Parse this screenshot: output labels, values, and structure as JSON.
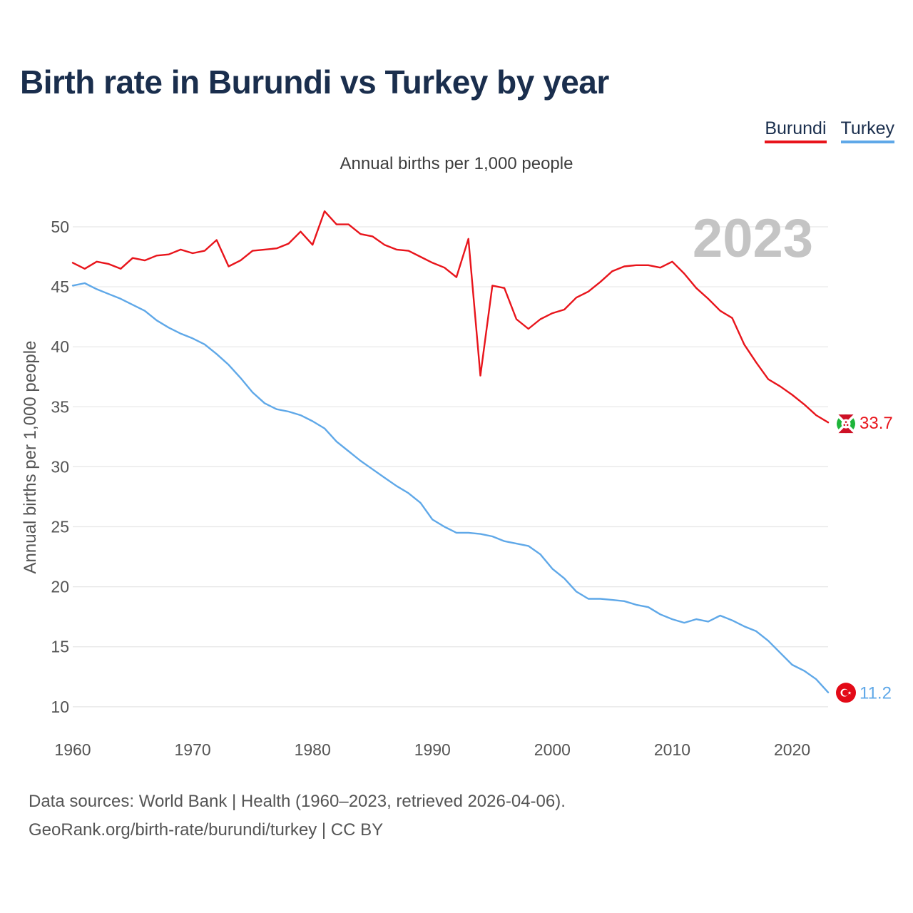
{
  "title": "Birth rate in Burundi vs Turkey by year",
  "subtitle": "Annual births per 1,000 people",
  "legend": [
    {
      "label": "Burundi",
      "color": "#e8141b"
    },
    {
      "label": "Turkey",
      "color": "#5fa8e8"
    }
  ],
  "footer": {
    "line1": "Data sources: World Bank | Health (1960–2023, retrieved 2026-04-06).",
    "line2": "GeoRank.org/birth-rate/burundi/turkey | CC BY"
  },
  "chart_data": {
    "type": "line",
    "title": "Birth rate in Burundi vs Turkey by year",
    "ylabel": "Annual births per 1,000 people",
    "xlabel": "",
    "year_label": "2023",
    "xlim": [
      1960,
      2023
    ],
    "ylim": [
      8,
      53
    ],
    "yticks": [
      10,
      15,
      20,
      25,
      30,
      35,
      40,
      45,
      50
    ],
    "xticks": [
      1960,
      1970,
      1980,
      1990,
      2000,
      2010,
      2020
    ],
    "grid": true,
    "x": [
      1960,
      1961,
      1962,
      1963,
      1964,
      1965,
      1966,
      1967,
      1968,
      1969,
      1970,
      1971,
      1972,
      1973,
      1974,
      1975,
      1976,
      1977,
      1978,
      1979,
      1980,
      1981,
      1982,
      1983,
      1984,
      1985,
      1986,
      1987,
      1988,
      1989,
      1990,
      1991,
      1992,
      1993,
      1994,
      1995,
      1996,
      1997,
      1998,
      1999,
      2000,
      2001,
      2002,
      2003,
      2004,
      2005,
      2006,
      2007,
      2008,
      2009,
      2010,
      2011,
      2012,
      2013,
      2014,
      2015,
      2016,
      2017,
      2018,
      2019,
      2020,
      2021,
      2022,
      2023
    ],
    "series": [
      {
        "name": "Burundi",
        "color": "#e8141b",
        "end_label": "33.7",
        "values": [
          47.0,
          46.5,
          47.1,
          46.9,
          46.5,
          47.4,
          47.2,
          47.6,
          47.7,
          48.1,
          47.8,
          48.0,
          48.9,
          46.7,
          47.2,
          48.0,
          48.1,
          48.2,
          48.6,
          49.6,
          48.5,
          51.3,
          50.2,
          50.2,
          49.4,
          49.2,
          48.5,
          48.1,
          48.0,
          47.5,
          47.0,
          46.6,
          45.8,
          49.0,
          37.6,
          45.1,
          44.9,
          42.3,
          41.5,
          42.3,
          42.8,
          43.1,
          44.1,
          44.6,
          45.4,
          46.3,
          46.7,
          46.8,
          46.8,
          46.6,
          47.1,
          46.1,
          44.9,
          44.0,
          43.0,
          42.4,
          40.2,
          38.7,
          37.3,
          36.7,
          36.0,
          35.2,
          34.3,
          33.7
        ]
      },
      {
        "name": "Turkey",
        "color": "#5fa8e8",
        "end_label": "11.2",
        "values": [
          45.1,
          45.3,
          44.8,
          44.4,
          44.0,
          43.5,
          43.0,
          42.2,
          41.6,
          41.1,
          40.7,
          40.2,
          39.4,
          38.5,
          37.4,
          36.2,
          35.3,
          34.8,
          34.6,
          34.3,
          33.8,
          33.2,
          32.1,
          31.3,
          30.5,
          29.8,
          29.1,
          28.4,
          27.8,
          27.0,
          25.6,
          25.0,
          24.5,
          24.5,
          24.4,
          24.2,
          23.8,
          23.6,
          23.4,
          22.7,
          21.5,
          20.7,
          19.6,
          19.0,
          19.0,
          18.9,
          18.8,
          18.5,
          18.3,
          17.7,
          17.3,
          17.0,
          17.3,
          17.1,
          17.6,
          17.2,
          16.7,
          16.3,
          15.5,
          14.5,
          13.5,
          13.0,
          12.3,
          11.2
        ]
      }
    ]
  }
}
